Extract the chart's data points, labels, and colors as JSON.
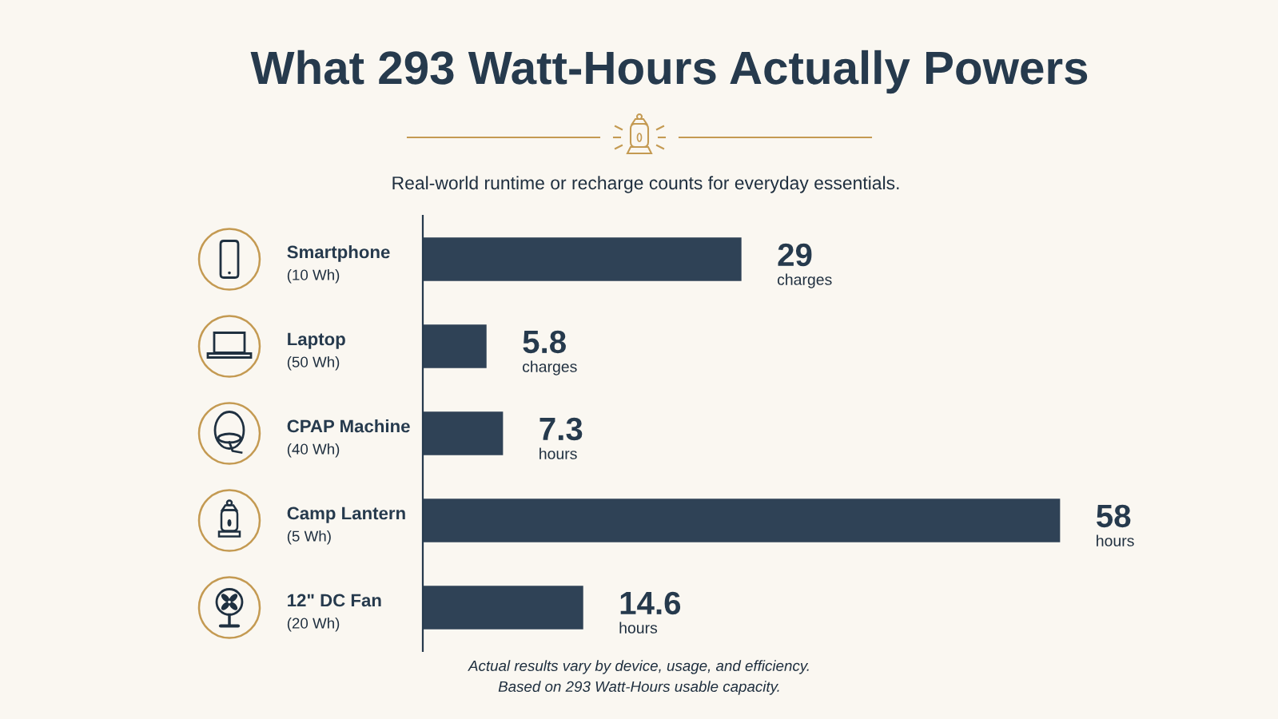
{
  "chart_data": {
    "type": "bar",
    "orientation": "horizontal",
    "title": "What 293 Watt-Hours Actually Powers",
    "subtitle": "Real-world runtime or recharge counts for everyday essentials.",
    "categories": [
      "Smartphone\n(10 Wh)",
      "Laptop\n(50 Wh)",
      "CPAP Machine\n(40 Wh)",
      "Camp Lantern\n(5 Wh)",
      "12\" DC Fan\n(20 Wh)"
    ],
    "values": [
      29,
      5.8,
      7.3,
      58,
      14.6
    ],
    "color": "#2f4256",
    "value_labels": [
      "29\ncharges",
      "5.8\ncharges",
      "7.3\nhours",
      "58\nhours",
      "14.6\nhours"
    ],
    "tick_labels": "y",
    "annotations": [
      "Actual results vary by device, usage, and efficiency.",
      "Based on 293 Watt-Hours usable capacity."
    ]
  }
}
